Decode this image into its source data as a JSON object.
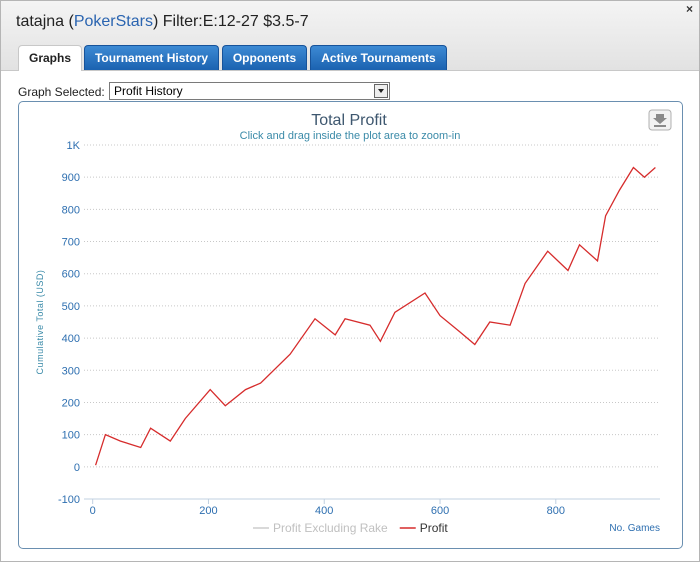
{
  "header": {
    "user": "tatajna",
    "brackets": [
      "(",
      ")"
    ],
    "site": "PokerStars",
    "filter": "Filter:E:12-27 $3.5-7",
    "close": "×"
  },
  "tabs": [
    "Graphs",
    "Tournament History",
    "Opponents",
    "Active Tournaments"
  ],
  "active_tab": 0,
  "selector": {
    "label": "Graph Selected:",
    "value": "Profit History"
  },
  "chart_data": {
    "type": "line",
    "title": "Total Profit",
    "subtitle": "Click and drag inside the plot area to zoom-in",
    "xlabel": "No. Games",
    "ylabel": "Cumulative Total (USD)",
    "x": [
      5,
      22,
      48,
      83,
      100,
      134,
      160,
      203,
      229,
      264,
      290,
      341,
      384,
      419,
      436,
      479,
      497,
      522,
      574,
      600,
      634,
      660,
      686,
      721,
      747,
      786,
      821,
      841,
      872,
      886,
      910,
      934,
      953,
      972
    ],
    "series": [
      {
        "name": "Profit Excluding Rake",
        "color": "#cccccc",
        "hidden": true
      },
      {
        "name": "Profit",
        "color": "#d62c2c",
        "values": [
          5,
          100,
          80,
          60,
          120,
          80,
          150,
          240,
          190,
          240,
          260,
          350,
          460,
          410,
          460,
          440,
          390,
          480,
          540,
          470,
          420,
          380,
          450,
          440,
          570,
          670,
          610,
          690,
          640,
          780,
          860,
          930,
          900,
          930
        ]
      }
    ],
    "xlim": [
      -15,
      980
    ],
    "ylim": [
      -100,
      1000
    ],
    "xticks": [
      0,
      200,
      400,
      600,
      800
    ],
    "yticks": [
      -100,
      0,
      100,
      200,
      300,
      400,
      500,
      600,
      700,
      800,
      900,
      {
        "value": 1000,
        "label": "1K"
      }
    ],
    "grid": true
  }
}
